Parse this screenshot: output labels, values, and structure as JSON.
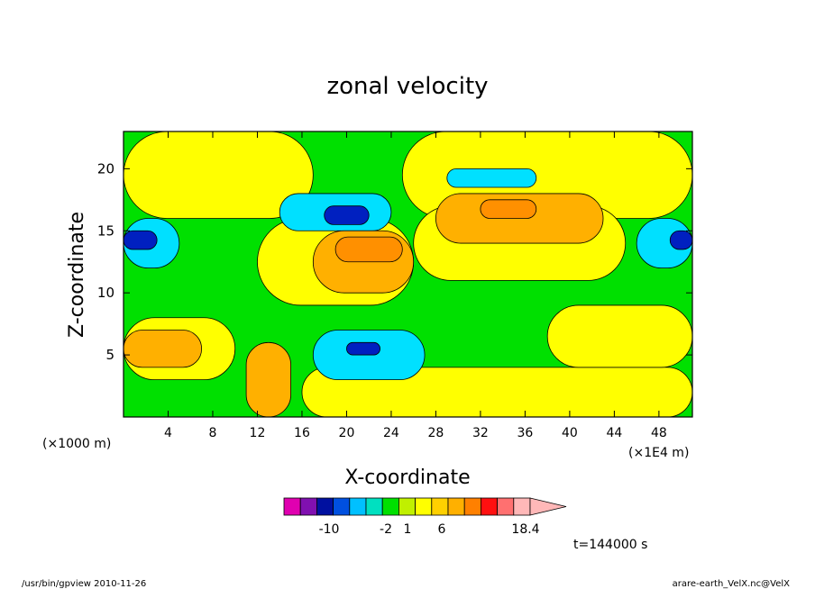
{
  "chart_data": {
    "type": "heatmap",
    "title": "zonal velocity",
    "xlabel": "X-coordinate",
    "ylabel": "Z-coordinate",
    "x_unit_note": "(×1E4 m)",
    "y_unit_note": "(×1000 m)",
    "xlim": [
      0,
      51
    ],
    "ylim": [
      0,
      23
    ],
    "x_ticks": [
      "4",
      "8",
      "12",
      "16",
      "20",
      "24",
      "28",
      "32",
      "36",
      "40",
      "44",
      "48"
    ],
    "y_ticks": [
      "5",
      "10",
      "15",
      "20"
    ],
    "colorbar": {
      "colors": [
        "#e000b0",
        "#8010b0",
        "#0010a0",
        "#0050e0",
        "#00c0ff",
        "#00e0c0",
        "#00e000",
        "#c0f000",
        "#ffff00",
        "#ffd000",
        "#ffb000",
        "#ff8000",
        "#ff1010",
        "#ff7070",
        "#ffb8b8"
      ],
      "tick_labels": [
        "-10",
        "-2",
        "1",
        "6",
        "18.4"
      ],
      "extend_max": true
    },
    "regions": [
      {
        "level": "green",
        "color": "#00e000",
        "x": [
          0,
          51
        ],
        "y": [
          0,
          23
        ]
      },
      {
        "level": "yellow",
        "color": "#ffff00",
        "x": [
          0,
          17
        ],
        "y": [
          16,
          23
        ]
      },
      {
        "level": "yellow",
        "color": "#ffff00",
        "x": [
          25,
          51
        ],
        "y": [
          16,
          23
        ]
      },
      {
        "level": "yellow",
        "color": "#ffff00",
        "x": [
          12,
          26
        ],
        "y": [
          9,
          16
        ]
      },
      {
        "level": "yellow",
        "color": "#ffff00",
        "x": [
          26,
          45
        ],
        "y": [
          11,
          17
        ]
      },
      {
        "level": "yellow",
        "color": "#ffff00",
        "x": [
          0,
          10
        ],
        "y": [
          3,
          8
        ]
      },
      {
        "level": "yellow",
        "color": "#ffff00",
        "x": [
          16,
          51
        ],
        "y": [
          0,
          4
        ]
      },
      {
        "level": "yellow",
        "color": "#ffff00",
        "x": [
          38,
          51
        ],
        "y": [
          4,
          9
        ]
      },
      {
        "level": "cyan",
        "color": "#00e0ff",
        "x": [
          0,
          5
        ],
        "y": [
          12,
          16
        ]
      },
      {
        "level": "cyan",
        "color": "#00e0ff",
        "x": [
          14,
          24
        ],
        "y": [
          15,
          18
        ]
      },
      {
        "level": "cyan",
        "color": "#00e0ff",
        "x": [
          29,
          37
        ],
        "y": [
          18.5,
          20
        ]
      },
      {
        "level": "cyan",
        "color": "#00e0ff",
        "x": [
          17,
          27
        ],
        "y": [
          3,
          7
        ]
      },
      {
        "level": "cyan",
        "color": "#00e0ff",
        "x": [
          46,
          51
        ],
        "y": [
          12,
          16
        ]
      },
      {
        "level": "blue",
        "color": "#0020c0",
        "x": [
          0,
          3
        ],
        "y": [
          13.5,
          15
        ]
      },
      {
        "level": "blue",
        "color": "#0020c0",
        "x": [
          18,
          22
        ],
        "y": [
          15.5,
          17
        ]
      },
      {
        "level": "blue",
        "color": "#0020c0",
        "x": [
          20,
          23
        ],
        "y": [
          5,
          6
        ]
      },
      {
        "level": "blue",
        "color": "#0020c0",
        "x": [
          49,
          51
        ],
        "y": [
          13.5,
          15
        ]
      },
      {
        "level": "orange",
        "color": "#ffb000",
        "x": [
          17,
          26
        ],
        "y": [
          10,
          15
        ]
      },
      {
        "level": "orange",
        "color": "#ffb000",
        "x": [
          28,
          43
        ],
        "y": [
          14,
          18
        ]
      },
      {
        "level": "orange",
        "color": "#ffb000",
        "x": [
          0,
          7
        ],
        "y": [
          4,
          7
        ]
      },
      {
        "level": "orange",
        "color": "#ffb000",
        "x": [
          11,
          15
        ],
        "y": [
          0,
          6
        ]
      },
      {
        "level": "dark-orange",
        "color": "#ff9000",
        "x": [
          19,
          25
        ],
        "y": [
          12.5,
          14.5
        ]
      },
      {
        "level": "dark-orange",
        "color": "#ff9000",
        "x": [
          32,
          37
        ],
        "y": [
          16,
          17.5
        ]
      }
    ]
  },
  "time_label": "t=144000 s",
  "footer_left": "/usr/bin/gpview  2010-11-26",
  "footer_right": "arare-earth_VelX.nc@VelX"
}
